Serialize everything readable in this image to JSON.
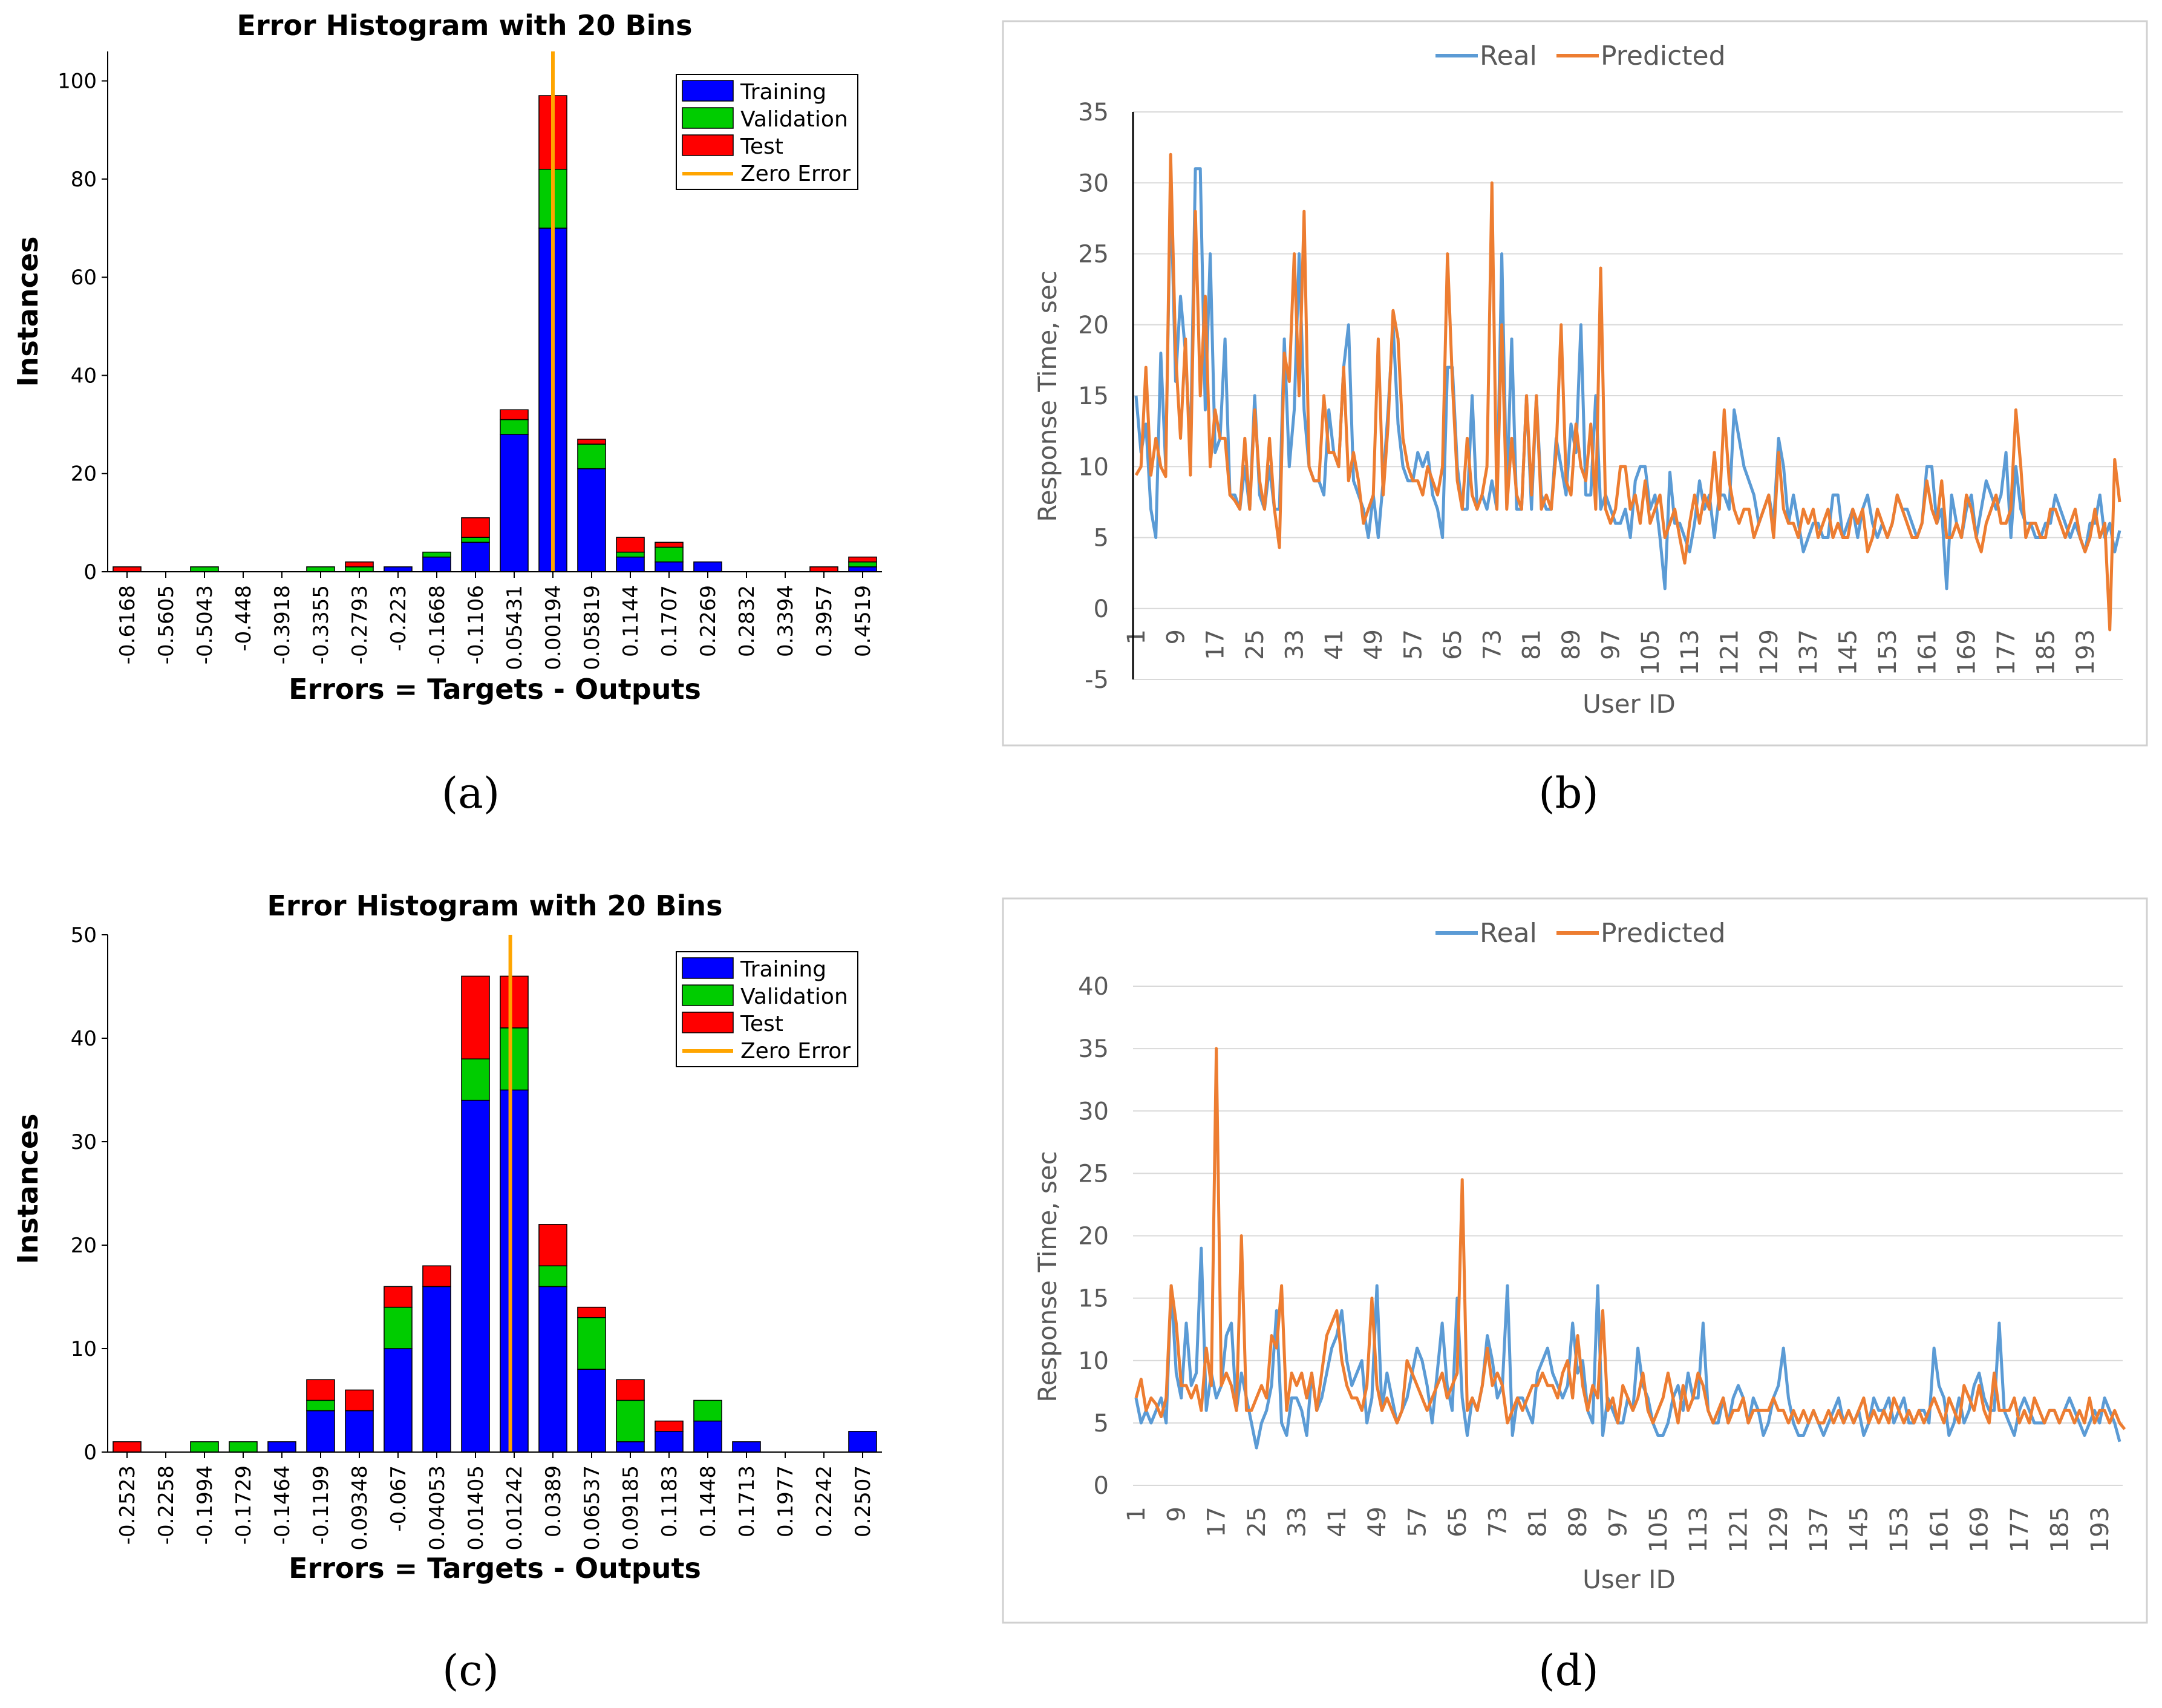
{
  "captions": [
    "(a)",
    "(b)",
    "(c)",
    "(d)"
  ],
  "colors": {
    "training": "#0000ff",
    "validation": "#00cc00",
    "test": "#ff0000",
    "zero_error": "#ffa500",
    "real": "#5b9bd5",
    "predicted": "#ed7d31"
  },
  "chart_data": [
    {
      "panel": "(a)",
      "type": "bar",
      "stacked": true,
      "title": "Error Histogram with 20 Bins",
      "xlabel": "Errors = Targets - Outputs",
      "ylabel": "Instances",
      "ylim": [
        0,
        106
      ],
      "yticks": [
        0,
        20,
        40,
        60,
        80,
        100
      ],
      "categories": [
        "-0.6168",
        "-0.5605",
        "-0.5043",
        "-0.448",
        "-0.3918",
        "-0.3355",
        "-0.2793",
        "-0.223",
        "-0.1668",
        "-0.1106",
        "0.05431",
        "0.00194",
        "0.05819",
        "0.1144",
        "0.1707",
        "0.2269",
        "0.2832",
        "0.3394",
        "0.3957",
        "0.4519"
      ],
      "series": [
        {
          "name": "Training",
          "values": [
            0,
            0,
            0,
            0,
            0,
            0,
            0,
            1,
            3,
            6,
            28,
            70,
            21,
            3,
            2,
            2,
            0,
            0,
            0,
            1
          ]
        },
        {
          "name": "Validation",
          "values": [
            0,
            0,
            1,
            0,
            0,
            1,
            1,
            0,
            1,
            1,
            3,
            12,
            5,
            1,
            3,
            0,
            0,
            0,
            0,
            1
          ]
        },
        {
          "name": "Test",
          "values": [
            1,
            0,
            0,
            0,
            0,
            0,
            1,
            0,
            0,
            4,
            2,
            15,
            1,
            3,
            1,
            0,
            0,
            0,
            1,
            1
          ]
        }
      ],
      "zero_error_bin": 11,
      "legend": [
        "Training",
        "Validation",
        "Test",
        "Zero Error"
      ],
      "legend_position": "top-right"
    },
    {
      "panel": "(b)",
      "type": "line",
      "title": "",
      "xlabel": "User ID",
      "ylabel": "Response Time, sec",
      "ylim": [
        -5,
        35
      ],
      "yticks": [
        -5,
        0,
        5,
        10,
        15,
        20,
        25,
        30,
        35
      ],
      "xticks": [
        "1",
        "9",
        "17",
        "25",
        "33",
        "41",
        "49",
        "57",
        "65",
        "73",
        "81",
        "89",
        "97",
        "105",
        "113",
        "121",
        "129",
        "137",
        "145",
        "153",
        "161",
        "169",
        "177",
        "185",
        "193"
      ],
      "legend": [
        "Real",
        "Predicted"
      ],
      "legend_position": "top",
      "series": [
        {
          "name": "Real",
          "values": [
            15,
            11,
            13,
            7,
            5,
            18,
            10,
            30,
            16,
            22,
            18,
            11,
            31,
            31,
            14,
            25,
            11,
            12,
            19,
            8,
            8,
            7,
            10,
            7,
            15,
            8,
            7,
            10,
            7,
            7,
            19,
            10,
            14,
            25,
            14,
            10,
            9,
            9,
            8,
            14,
            11,
            10,
            17,
            20,
            9,
            8,
            7,
            5,
            8,
            5,
            9,
            14,
            20,
            13,
            10,
            9,
            9,
            11,
            10,
            11,
            8,
            7,
            5,
            17,
            17,
            10,
            7,
            7,
            15,
            7,
            8,
            7,
            9,
            7,
            25,
            8,
            19,
            7,
            7,
            15,
            7,
            15,
            8,
            7,
            7,
            12,
            10,
            8,
            13,
            11,
            20,
            8,
            8,
            15,
            7,
            8,
            7,
            6,
            6,
            7,
            5,
            9,
            10,
            10,
            7,
            8,
            5,
            1.4,
            9.6,
            6,
            6,
            5,
            4,
            6,
            9,
            7,
            8,
            5,
            8,
            8,
            7,
            14,
            12,
            10,
            9,
            8,
            6,
            7,
            8,
            6,
            12,
            10,
            6,
            8,
            6,
            4,
            5,
            6,
            6,
            5,
            5,
            8,
            8,
            5,
            6,
            7,
            5,
            7,
            8,
            6,
            5,
            6,
            5,
            6,
            8,
            7,
            7,
            6,
            5,
            6,
            10,
            10,
            6,
            7,
            1.4,
            8,
            6,
            5,
            7,
            8,
            5,
            7,
            9,
            8,
            7,
            8,
            11,
            5,
            10,
            7,
            6,
            6,
            5,
            5,
            6,
            6,
            8,
            7,
            6,
            5,
            6,
            5,
            4,
            6,
            6,
            8,
            5,
            6,
            4,
            5.5
          ]
        },
        {
          "name": "Predicted",
          "values": [
            9.4,
            10,
            17,
            9.4,
            12,
            10,
            9.3,
            32,
            18,
            12,
            19,
            9.4,
            28,
            15,
            22,
            10,
            14,
            12,
            12,
            8,
            7.6,
            7,
            12,
            7,
            14,
            9,
            7,
            12,
            7,
            4.3,
            18,
            16,
            25,
            15,
            28,
            10,
            9,
            9,
            15,
            11,
            11,
            10,
            17,
            9,
            11,
            9,
            6,
            7,
            8,
            19,
            8,
            13,
            21,
            19,
            12,
            10,
            9,
            9,
            8,
            10,
            9,
            8,
            10,
            25,
            16,
            9,
            7,
            12,
            8,
            7,
            8,
            10,
            30,
            7,
            20,
            7,
            12,
            8,
            7,
            15,
            8,
            15,
            7,
            8,
            7,
            11,
            20,
            9,
            8,
            13,
            10,
            9,
            13,
            7,
            24,
            7,
            6,
            7,
            10,
            10,
            7,
            8,
            6,
            9,
            6,
            7,
            8,
            5,
            6,
            7,
            5,
            3.2,
            6,
            8,
            6,
            8,
            7,
            11,
            7,
            14,
            9,
            7,
            6,
            7,
            7,
            5,
            6,
            7,
            8,
            5,
            11,
            7,
            6,
            6,
            5,
            7,
            6,
            7,
            5,
            6,
            7,
            5,
            6,
            5,
            5,
            7,
            6,
            7,
            4,
            5,
            7,
            6,
            5,
            6,
            8,
            7,
            6,
            5,
            5,
            6,
            9,
            7,
            6,
            9,
            5,
            5,
            6,
            5,
            8,
            7,
            5,
            4,
            6,
            7,
            8,
            6,
            6,
            7,
            14,
            10,
            5,
            6,
            6,
            5,
            5,
            7,
            7,
            6,
            5,
            6,
            7,
            5,
            4,
            5,
            7,
            5,
            6,
            -1.5,
            10.5,
            7.5
          ]
        }
      ]
    },
    {
      "panel": "(c)",
      "type": "bar",
      "stacked": true,
      "title": "Error Histogram with 20 Bins",
      "xlabel": "Errors = Targets - Outputs",
      "ylabel": "Instances",
      "ylim": [
        0,
        50
      ],
      "yticks": [
        0,
        10,
        20,
        30,
        40,
        50
      ],
      "categories": [
        "-0.2523",
        "-0.2258",
        "-0.1994",
        "-0.1729",
        "-0.1464",
        "-0.1199",
        "0.09348",
        "-0.067",
        "0.04053",
        "0.01405",
        "0.01242",
        "0.0389",
        "0.06537",
        "0.09185",
        "0.1183",
        "0.1448",
        "0.1713",
        "0.1977",
        "0.2242",
        "0.2507"
      ],
      "series": [
        {
          "name": "Training",
          "values": [
            0,
            0,
            0,
            0,
            1,
            4,
            4,
            10,
            16,
            34,
            35,
            16,
            8,
            1,
            2,
            3,
            1,
            0,
            0,
            2
          ]
        },
        {
          "name": "Validation",
          "values": [
            0,
            0,
            1,
            1,
            0,
            1,
            0,
            4,
            0,
            4,
            6,
            2,
            5,
            4,
            0,
            2,
            0,
            0,
            0,
            0
          ]
        },
        {
          "name": "Test",
          "values": [
            1,
            0,
            0,
            0,
            0,
            2,
            2,
            2,
            2,
            8,
            5,
            4,
            1,
            2,
            1,
            0,
            0,
            0,
            0,
            0
          ]
        }
      ],
      "zero_error_bin": 9.9,
      "legend": [
        "Training",
        "Validation",
        "Test",
        "Zero Error"
      ],
      "legend_position": "top-right"
    },
    {
      "panel": "(d)",
      "type": "line",
      "title": "",
      "xlabel": "User ID",
      "ylabel": "Response Time, sec",
      "ylim": [
        0,
        40
      ],
      "yticks": [
        0,
        5,
        10,
        15,
        20,
        25,
        30,
        35,
        40
      ],
      "xticks": [
        "1",
        "9",
        "17",
        "25",
        "33",
        "41",
        "49",
        "57",
        "65",
        "73",
        "81",
        "89",
        "97",
        "105",
        "113",
        "121",
        "129",
        "137",
        "145",
        "153",
        "161",
        "169",
        "177",
        "185",
        "193"
      ],
      "legend": [
        "Real",
        "Predicted"
      ],
      "legend_position": "top",
      "series": [
        {
          "name": "Real",
          "values": [
            7,
            5,
            6,
            5,
            6,
            7,
            5,
            16,
            9,
            7,
            13,
            8,
            9,
            19,
            6,
            9,
            7,
            8,
            12,
            13,
            6,
            9,
            7,
            5,
            3,
            5,
            6,
            8,
            14,
            5,
            4,
            7,
            7,
            6,
            4,
            9,
            6,
            7,
            9,
            11,
            12,
            14,
            10,
            8,
            9,
            10,
            5,
            7,
            16,
            6,
            9,
            7,
            5,
            6,
            7,
            9,
            11,
            10,
            8,
            5,
            9,
            13,
            8,
            6,
            15,
            7,
            4,
            7,
            6,
            8,
            12,
            10,
            7,
            8,
            16,
            4,
            7,
            7,
            6,
            5,
            9,
            10,
            11,
            9,
            8,
            7,
            8,
            13,
            9,
            10,
            6,
            5,
            16,
            4,
            7,
            6,
            5,
            5,
            7,
            6,
            11,
            8,
            7,
            5,
            4,
            4,
            5,
            7,
            8,
            6,
            9,
            7,
            7,
            13,
            6,
            5,
            5,
            7,
            5,
            7,
            8,
            7,
            5,
            7,
            6,
            4,
            5,
            7,
            8,
            11,
            7,
            5,
            4,
            4,
            5,
            6,
            5,
            4,
            5,
            6,
            7,
            5,
            6,
            5,
            6,
            4,
            5,
            7,
            6,
            6,
            7,
            5,
            6,
            7,
            5,
            5,
            6,
            6,
            5,
            11,
            8,
            7,
            4,
            5,
            7,
            5,
            6,
            8,
            9,
            7,
            6,
            6,
            13,
            6,
            5,
            4,
            6,
            7,
            6,
            5,
            5,
            5,
            6,
            6,
            5,
            6,
            7,
            6,
            5,
            4,
            5,
            6,
            5,
            7,
            6,
            5,
            3.5
          ]
        },
        {
          "name": "Predicted",
          "values": [
            7,
            8.5,
            6,
            7,
            6.5,
            5.5,
            7,
            16,
            13,
            8,
            8,
            7,
            8,
            6,
            11,
            8,
            35,
            8,
            9,
            8,
            6,
            20,
            6,
            6,
            7,
            8,
            7,
            12,
            11,
            16,
            6,
            9,
            8,
            9,
            7,
            9,
            6,
            9,
            12,
            13,
            14,
            10,
            8,
            7,
            7,
            6,
            8,
            15,
            8,
            6,
            7,
            6,
            5,
            6,
            10,
            9,
            8,
            7,
            6,
            7,
            8,
            9,
            7,
            8,
            9,
            24.5,
            6,
            7,
            6,
            8,
            11,
            8,
            9,
            8,
            5,
            6,
            7,
            6,
            7,
            8,
            8,
            9,
            8,
            8,
            7,
            9,
            10,
            7,
            12,
            8,
            6,
            8,
            7,
            14,
            6,
            7,
            5,
            8,
            7,
            6,
            7,
            9,
            6,
            5,
            6,
            7,
            9,
            7,
            5,
            8,
            6,
            7,
            9,
            8,
            6,
            5,
            6,
            7,
            5,
            6,
            6,
            7,
            5,
            6,
            6,
            6,
            6,
            7,
            6,
            6,
            5,
            6,
            5,
            6,
            5,
            6,
            5,
            5,
            6,
            5,
            6,
            5,
            6,
            5,
            6,
            7,
            5,
            6,
            5,
            6,
            5,
            7,
            6,
            5,
            6,
            5,
            6,
            5,
            6,
            7,
            6,
            5,
            7,
            6,
            5,
            8,
            7,
            6,
            8,
            6,
            5,
            9,
            6,
            6,
            6,
            7,
            5,
            6,
            5,
            7,
            6,
            5,
            6,
            6,
            5,
            6,
            6,
            5,
            6,
            5,
            7,
            5,
            6,
            6,
            5,
            6,
            5,
            4.5
          ]
        }
      ]
    }
  ]
}
